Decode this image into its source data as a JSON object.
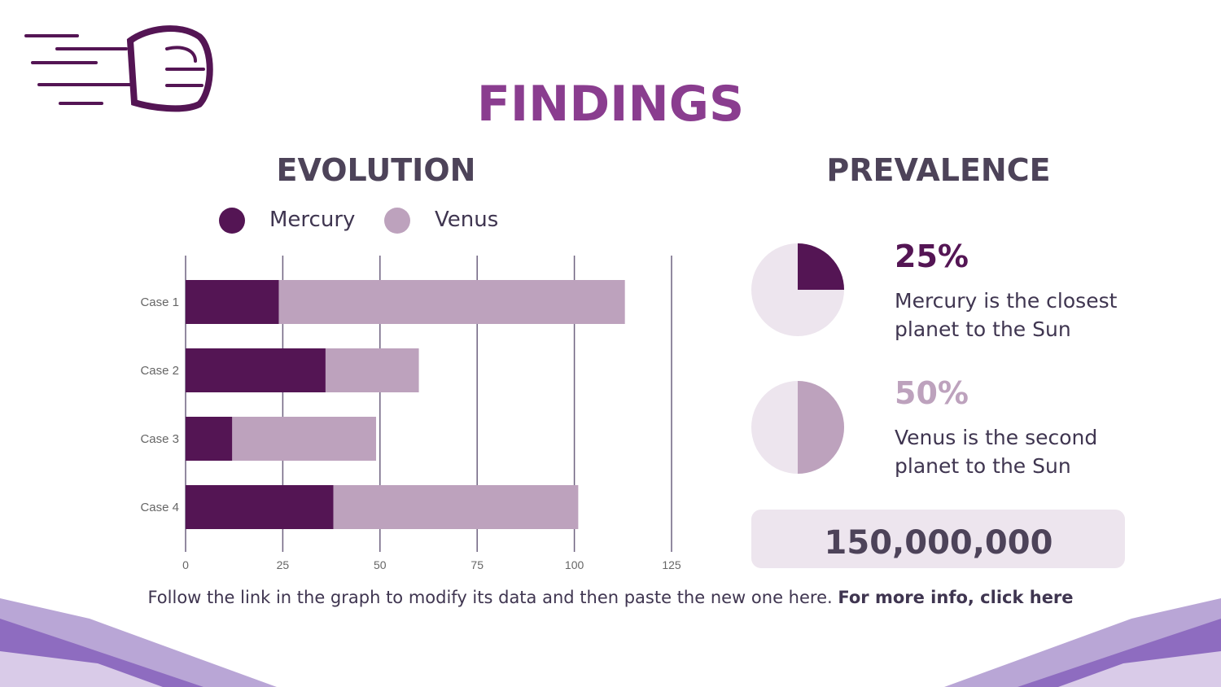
{
  "title": "FINDINGS",
  "evolution": {
    "heading": "EVOLUTION"
  },
  "prevalence": {
    "heading": "PREVALENCE",
    "items": [
      {
        "text": "Mercury is the closest planet to the Sun"
      },
      {
        "text": "Venus is the second planet to the Sun"
      }
    ],
    "total": "150,000,000"
  },
  "footer": {
    "text": "Follow the link in the graph to modify its data and then paste the new one here.",
    "link": "For more info, click here"
  },
  "chart_data": [
    {
      "type": "bar",
      "stacked": true,
      "orientation": "horizontal",
      "categories": [
        "Case 1",
        "Case 2",
        "Case 3",
        "Case 4"
      ],
      "series": [
        {
          "name": "Mercury",
          "color": "#541554",
          "values": [
            24,
            36,
            12,
            38
          ]
        },
        {
          "name": "Venus",
          "color": "#bda2bd",
          "values": [
            89,
            24,
            37,
            63
          ]
        }
      ],
      "xlim": [
        0,
        125
      ],
      "xticks": [
        0,
        25,
        50,
        75,
        100,
        125
      ],
      "grid": true
    },
    {
      "type": "pie",
      "values": [
        25
      ],
      "value_labels": [
        "25%"
      ],
      "color": "#541554"
    },
    {
      "type": "pie",
      "values": [
        50
      ],
      "value_labels": [
        "50%"
      ],
      "color": "#bda2bd"
    }
  ]
}
